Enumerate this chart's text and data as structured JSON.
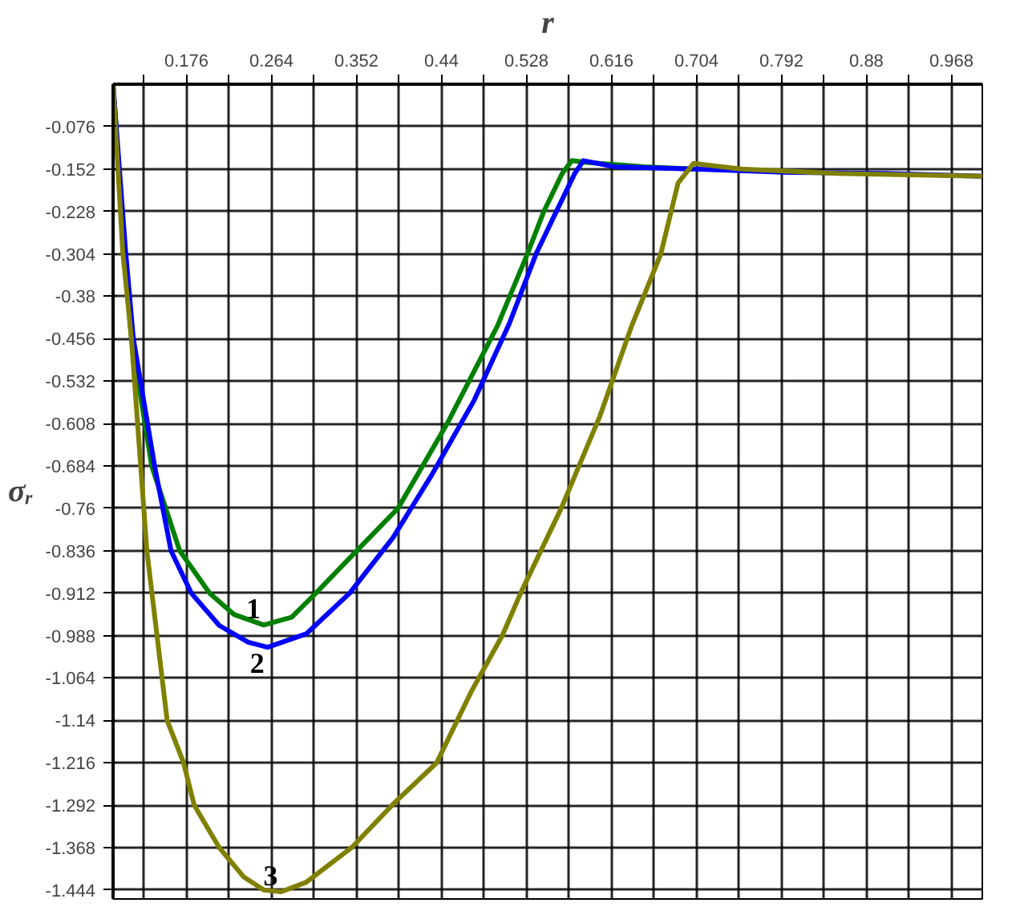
{
  "chart_data": {
    "type": "line",
    "xlabel": "r",
    "ylabel": "σᵣ",
    "xlim": [
      0.1,
      1.0
    ],
    "ylim": [
      -1.46,
      0
    ],
    "xticks": [
      {
        "value": 0.132,
        "label": null
      },
      0.176,
      {
        "value": 0.22,
        "label": null
      },
      0.264,
      {
        "value": 0.308,
        "label": null
      },
      0.352,
      {
        "value": 0.396,
        "label": null
      },
      0.44,
      {
        "value": 0.484,
        "label": null
      },
      0.528,
      {
        "value": 0.572,
        "label": null
      },
      0.616,
      {
        "value": 0.66,
        "label": null
      },
      0.704,
      {
        "value": 0.748,
        "label": null
      },
      0.792,
      {
        "value": 0.836,
        "label": null
      },
      0.88,
      {
        "value": 0.924,
        "label": null
      },
      0.968
    ],
    "yticks": [
      -0.076,
      -0.152,
      -0.228,
      -0.304,
      -0.38,
      -0.456,
      -0.532,
      -0.608,
      -0.684,
      -0.76,
      -0.836,
      -0.912,
      -0.988,
      -1.064,
      -1.14,
      -1.216,
      -1.292,
      -1.368,
      -1.444
    ],
    "grid": true,
    "marker": "none",
    "line_style": "solid",
    "series": [
      {
        "name": "1",
        "color": "#008000",
        "x": [
          0.1,
          0.112,
          0.119,
          0.14,
          0.169,
          0.2,
          0.225,
          0.256,
          0.285,
          0.31,
          0.35,
          0.395,
          0.446,
          0.498,
          0.529,
          0.546,
          0.565,
          0.575,
          0.59,
          0.65,
          0.7
        ],
        "values": [
          0,
          -0.3,
          -0.456,
          -0.684,
          -0.836,
          -0.912,
          -0.95,
          -0.969,
          -0.955,
          -0.912,
          -0.84,
          -0.76,
          -0.608,
          -0.433,
          -0.304,
          -0.228,
          -0.16,
          -0.137,
          -0.14,
          -0.148,
          -0.152
        ]
      },
      {
        "name": "2",
        "color": "#0000ff",
        "x": [
          0.1,
          0.113,
          0.121,
          0.143,
          0.16,
          0.181,
          0.21,
          0.24,
          0.26,
          0.3,
          0.345,
          0.39,
          0.43,
          0.474,
          0.51,
          0.538,
          0.559,
          0.578,
          0.587,
          0.62,
          0.7,
          0.8,
          0.9,
          1.0
        ],
        "values": [
          0,
          -0.3,
          -0.456,
          -0.684,
          -0.836,
          -0.912,
          -0.97,
          -1.0,
          -1.009,
          -0.985,
          -0.912,
          -0.812,
          -0.7,
          -0.566,
          -0.43,
          -0.304,
          -0.228,
          -0.16,
          -0.137,
          -0.148,
          -0.152,
          -0.158,
          -0.16,
          -0.165
        ]
      },
      {
        "name": "3",
        "color": "#808000",
        "x": [
          0.1,
          0.11,
          0.119,
          0.135,
          0.156,
          0.173,
          0.184,
          0.21,
          0.235,
          0.256,
          0.274,
          0.3,
          0.347,
          0.39,
          0.435,
          0.471,
          0.503,
          0.522,
          0.564,
          0.604,
          0.637,
          0.667,
          0.685,
          0.701,
          0.75,
          0.85,
          1.0
        ],
        "values": [
          0,
          -0.3,
          -0.456,
          -0.836,
          -1.14,
          -1.216,
          -1.292,
          -1.368,
          -1.42,
          -1.444,
          -1.447,
          -1.43,
          -1.368,
          -1.29,
          -1.216,
          -1.088,
          -0.988,
          -0.912,
          -0.76,
          -0.595,
          -0.433,
          -0.305,
          -0.177,
          -0.142,
          -0.152,
          -0.16,
          -0.165
        ]
      }
    ]
  }
}
